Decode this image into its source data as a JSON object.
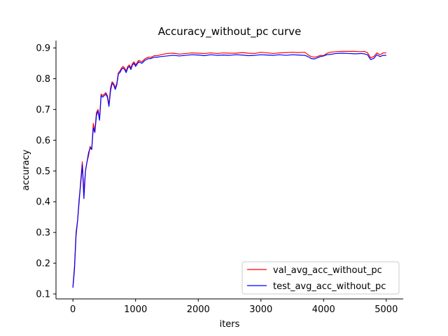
{
  "chart_data": {
    "type": "line",
    "title": "Accuracy_without_pc curve",
    "xlabel": "iters",
    "ylabel": "accuracy",
    "xlim": [
      -270,
      5270
    ],
    "ylim": [
      0.084,
      0.924
    ],
    "xticks": [
      0,
      1000,
      2000,
      3000,
      4000,
      5000
    ],
    "xtick_labels": [
      "0",
      "1000",
      "2000",
      "3000",
      "4000",
      "5000"
    ],
    "yticks": [
      0.1,
      0.2,
      0.3,
      0.4,
      0.5,
      0.6,
      0.7,
      0.8,
      0.9
    ],
    "ytick_labels": [
      "0.1",
      "0.2",
      "0.3",
      "0.4",
      "0.5",
      "0.6",
      "0.7",
      "0.8",
      "0.9"
    ],
    "grid": false,
    "legend_position": "lower-right",
    "series": [
      {
        "name": "val_avg_acc_without_pc",
        "color": "#ff0000",
        "points": [
          [
            0,
            0.125
          ],
          [
            25,
            0.19
          ],
          [
            50,
            0.3
          ],
          [
            75,
            0.34
          ],
          [
            100,
            0.4
          ],
          [
            125,
            0.47
          ],
          [
            150,
            0.53
          ],
          [
            175,
            0.43
          ],
          [
            200,
            0.5
          ],
          [
            225,
            0.53
          ],
          [
            250,
            0.55
          ],
          [
            275,
            0.58
          ],
          [
            300,
            0.57
          ],
          [
            325,
            0.655
          ],
          [
            350,
            0.63
          ],
          [
            375,
            0.69
          ],
          [
            400,
            0.7
          ],
          [
            425,
            0.67
          ],
          [
            450,
            0.75
          ],
          [
            475,
            0.745
          ],
          [
            500,
            0.75
          ],
          [
            525,
            0.755
          ],
          [
            550,
            0.745
          ],
          [
            575,
            0.715
          ],
          [
            600,
            0.77
          ],
          [
            625,
            0.79
          ],
          [
            650,
            0.785
          ],
          [
            675,
            0.77
          ],
          [
            700,
            0.785
          ],
          [
            725,
            0.82
          ],
          [
            750,
            0.825
          ],
          [
            775,
            0.835
          ],
          [
            800,
            0.84
          ],
          [
            825,
            0.835
          ],
          [
            850,
            0.825
          ],
          [
            875,
            0.84
          ],
          [
            900,
            0.845
          ],
          [
            925,
            0.835
          ],
          [
            950,
            0.85
          ],
          [
            975,
            0.855
          ],
          [
            1000,
            0.845
          ],
          [
            1050,
            0.86
          ],
          [
            1100,
            0.855
          ],
          [
            1150,
            0.865
          ],
          [
            1200,
            0.87
          ],
          [
            1250,
            0.87
          ],
          [
            1300,
            0.875
          ],
          [
            1350,
            0.875
          ],
          [
            1400,
            0.878
          ],
          [
            1500,
            0.882
          ],
          [
            1600,
            0.883
          ],
          [
            1700,
            0.88
          ],
          [
            1800,
            0.882
          ],
          [
            1900,
            0.884
          ],
          [
            2000,
            0.883
          ],
          [
            2100,
            0.882
          ],
          [
            2200,
            0.884
          ],
          [
            2300,
            0.882
          ],
          [
            2400,
            0.884
          ],
          [
            2500,
            0.883
          ],
          [
            2600,
            0.883
          ],
          [
            2700,
            0.885
          ],
          [
            2800,
            0.883
          ],
          [
            2900,
            0.882
          ],
          [
            3000,
            0.886
          ],
          [
            3100,
            0.884
          ],
          [
            3200,
            0.882
          ],
          [
            3300,
            0.884
          ],
          [
            3400,
            0.885
          ],
          [
            3500,
            0.886
          ],
          [
            3600,
            0.885
          ],
          [
            3700,
            0.886
          ],
          [
            3750,
            0.878
          ],
          [
            3800,
            0.872
          ],
          [
            3850,
            0.87
          ],
          [
            3900,
            0.872
          ],
          [
            3950,
            0.876
          ],
          [
            4000,
            0.875
          ],
          [
            4050,
            0.882
          ],
          [
            4100,
            0.886
          ],
          [
            4200,
            0.888
          ],
          [
            4300,
            0.889
          ],
          [
            4400,
            0.889
          ],
          [
            4500,
            0.889
          ],
          [
            4600,
            0.888
          ],
          [
            4650,
            0.889
          ],
          [
            4700,
            0.885
          ],
          [
            4750,
            0.868
          ],
          [
            4800,
            0.872
          ],
          [
            4850,
            0.884
          ],
          [
            4900,
            0.878
          ],
          [
            4950,
            0.884
          ],
          [
            5000,
            0.884
          ]
        ]
      },
      {
        "name": "test_avg_acc_without_pc",
        "color": "#0000ff",
        "points": [
          [
            0,
            0.12
          ],
          [
            25,
            0.18
          ],
          [
            50,
            0.29
          ],
          [
            75,
            0.34
          ],
          [
            100,
            0.41
          ],
          [
            125,
            0.46
          ],
          [
            150,
            0.52
          ],
          [
            175,
            0.41
          ],
          [
            200,
            0.5
          ],
          [
            225,
            0.53
          ],
          [
            250,
            0.56
          ],
          [
            275,
            0.575
          ],
          [
            300,
            0.57
          ],
          [
            325,
            0.64
          ],
          [
            350,
            0.625
          ],
          [
            375,
            0.68
          ],
          [
            400,
            0.695
          ],
          [
            425,
            0.665
          ],
          [
            450,
            0.745
          ],
          [
            475,
            0.74
          ],
          [
            500,
            0.745
          ],
          [
            525,
            0.75
          ],
          [
            550,
            0.74
          ],
          [
            575,
            0.71
          ],
          [
            600,
            0.76
          ],
          [
            625,
            0.785
          ],
          [
            650,
            0.78
          ],
          [
            675,
            0.765
          ],
          [
            700,
            0.78
          ],
          [
            725,
            0.815
          ],
          [
            750,
            0.82
          ],
          [
            775,
            0.83
          ],
          [
            800,
            0.835
          ],
          [
            825,
            0.83
          ],
          [
            850,
            0.82
          ],
          [
            875,
            0.835
          ],
          [
            900,
            0.84
          ],
          [
            925,
            0.83
          ],
          [
            950,
            0.845
          ],
          [
            975,
            0.85
          ],
          [
            1000,
            0.84
          ],
          [
            1050,
            0.855
          ],
          [
            1100,
            0.85
          ],
          [
            1150,
            0.86
          ],
          [
            1200,
            0.865
          ],
          [
            1250,
            0.866
          ],
          [
            1300,
            0.87
          ],
          [
            1350,
            0.87
          ],
          [
            1400,
            0.872
          ],
          [
            1500,
            0.874
          ],
          [
            1600,
            0.876
          ],
          [
            1700,
            0.874
          ],
          [
            1800,
            0.876
          ],
          [
            1900,
            0.878
          ],
          [
            2000,
            0.877
          ],
          [
            2100,
            0.875
          ],
          [
            2200,
            0.878
          ],
          [
            2300,
            0.876
          ],
          [
            2400,
            0.877
          ],
          [
            2500,
            0.876
          ],
          [
            2600,
            0.878
          ],
          [
            2700,
            0.877
          ],
          [
            2800,
            0.875
          ],
          [
            2900,
            0.876
          ],
          [
            3000,
            0.878
          ],
          [
            3100,
            0.877
          ],
          [
            3200,
            0.876
          ],
          [
            3300,
            0.878
          ],
          [
            3400,
            0.876
          ],
          [
            3500,
            0.878
          ],
          [
            3600,
            0.877
          ],
          [
            3700,
            0.876
          ],
          [
            3750,
            0.872
          ],
          [
            3800,
            0.866
          ],
          [
            3850,
            0.864
          ],
          [
            3900,
            0.868
          ],
          [
            3950,
            0.872
          ],
          [
            4000,
            0.874
          ],
          [
            4050,
            0.878
          ],
          [
            4100,
            0.879
          ],
          [
            4200,
            0.882
          ],
          [
            4300,
            0.883
          ],
          [
            4400,
            0.882
          ],
          [
            4500,
            0.881
          ],
          [
            4600,
            0.882
          ],
          [
            4650,
            0.881
          ],
          [
            4700,
            0.878
          ],
          [
            4750,
            0.862
          ],
          [
            4800,
            0.866
          ],
          [
            4850,
            0.878
          ],
          [
            4900,
            0.872
          ],
          [
            4950,
            0.876
          ],
          [
            5000,
            0.876
          ]
        ]
      }
    ]
  }
}
